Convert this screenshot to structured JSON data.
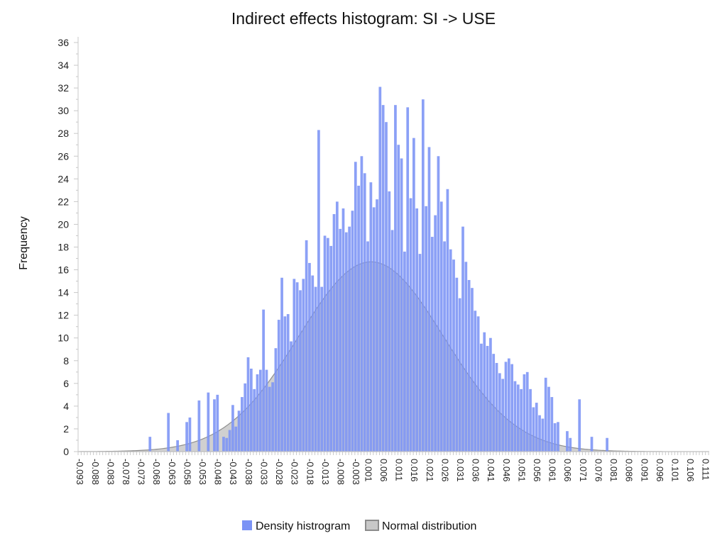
{
  "chart_data": {
    "type": "bar",
    "title": "Indirect effects histogram: SI -> USE",
    "ylabel": "Frequency",
    "xlabel": "",
    "ylim": [
      0,
      36
    ],
    "y_ticks": [
      0,
      2,
      4,
      6,
      8,
      10,
      12,
      14,
      16,
      18,
      20,
      22,
      24,
      26,
      28,
      30,
      32,
      34,
      36
    ],
    "x_range": [
      -0.0935,
      0.112
    ],
    "x_tick_labels": [
      "-0.093",
      "-0.088",
      "-0.083",
      "-0.078",
      "-0.073",
      "-0.068",
      "-0.063",
      "-0.058",
      "-0.053",
      "-0.048",
      "-0.043",
      "-0.038",
      "-0.033",
      "-0.028",
      "-0.023",
      "-0.018",
      "-0.013",
      "-0.008",
      "-0.003",
      "0.001",
      "0.006",
      "0.011",
      "0.016",
      "0.021",
      "0.026",
      "0.031",
      "0.036",
      "0.041",
      "0.046",
      "0.051",
      "0.056",
      "0.061",
      "0.066",
      "0.071",
      "0.076",
      "0.081",
      "0.086",
      "0.091",
      "0.096",
      "0.101",
      "0.106",
      "0.111"
    ],
    "bin_width": 0.001,
    "series": [
      {
        "name": "Density histrogram",
        "color": "#7b93f5",
        "bins": [
          [
            -0.07,
            1.3
          ],
          [
            -0.064,
            3.4
          ],
          [
            -0.061,
            1.0
          ],
          [
            -0.058,
            2.6
          ],
          [
            -0.057,
            3.0
          ],
          [
            -0.054,
            4.5
          ],
          [
            -0.051,
            5.2
          ],
          [
            -0.049,
            4.6
          ],
          [
            -0.048,
            5.0
          ],
          [
            -0.046,
            1.3
          ],
          [
            -0.045,
            1.2
          ],
          [
            -0.044,
            1.9
          ],
          [
            -0.043,
            4.1
          ],
          [
            -0.042,
            2.2
          ],
          [
            -0.041,
            3.6
          ],
          [
            -0.04,
            4.8
          ],
          [
            -0.039,
            6.0
          ],
          [
            -0.038,
            8.3
          ],
          [
            -0.037,
            7.3
          ],
          [
            -0.036,
            5.5
          ],
          [
            -0.035,
            6.8
          ],
          [
            -0.034,
            7.2
          ],
          [
            -0.033,
            12.5
          ],
          [
            -0.032,
            7.2
          ],
          [
            -0.031,
            5.7
          ],
          [
            -0.03,
            6.1
          ],
          [
            -0.029,
            9.1
          ],
          [
            -0.028,
            11.6
          ],
          [
            -0.027,
            15.3
          ],
          [
            -0.026,
            11.9
          ],
          [
            -0.025,
            12.1
          ],
          [
            -0.024,
            9.7
          ],
          [
            -0.023,
            15.2
          ],
          [
            -0.022,
            14.9
          ],
          [
            -0.021,
            14.2
          ],
          [
            -0.02,
            15.2
          ],
          [
            -0.019,
            18.6
          ],
          [
            -0.018,
            16.6
          ],
          [
            -0.017,
            15.5
          ],
          [
            -0.016,
            14.5
          ],
          [
            -0.015,
            28.3
          ],
          [
            -0.014,
            14.5
          ],
          [
            -0.013,
            19.0
          ],
          [
            -0.012,
            18.8
          ],
          [
            -0.011,
            18.1
          ],
          [
            -0.01,
            20.9
          ],
          [
            -0.009,
            22.0
          ],
          [
            -0.008,
            19.6
          ],
          [
            -0.007,
            21.4
          ],
          [
            -0.006,
            19.3
          ],
          [
            -0.005,
            19.8
          ],
          [
            -0.004,
            21.2
          ],
          [
            -0.003,
            25.5
          ],
          [
            -0.002,
            23.4
          ],
          [
            -0.001,
            26.0
          ],
          [
            0.0,
            24.5
          ],
          [
            0.001,
            18.5
          ],
          [
            0.002,
            23.7
          ],
          [
            0.003,
            21.5
          ],
          [
            0.004,
            22.2
          ],
          [
            0.005,
            32.1
          ],
          [
            0.006,
            30.5
          ],
          [
            0.007,
            29.0
          ],
          [
            0.008,
            22.9
          ],
          [
            0.009,
            19.5
          ],
          [
            0.01,
            30.5
          ],
          [
            0.011,
            27.0
          ],
          [
            0.012,
            25.8
          ],
          [
            0.013,
            17.6
          ],
          [
            0.014,
            30.3
          ],
          [
            0.015,
            22.3
          ],
          [
            0.016,
            27.6
          ],
          [
            0.017,
            21.4
          ],
          [
            0.018,
            17.4
          ],
          [
            0.019,
            31.0
          ],
          [
            0.02,
            21.6
          ],
          [
            0.021,
            26.8
          ],
          [
            0.022,
            18.9
          ],
          [
            0.023,
            20.8
          ],
          [
            0.024,
            26.0
          ],
          [
            0.025,
            22.0
          ],
          [
            0.026,
            18.5
          ],
          [
            0.027,
            23.1
          ],
          [
            0.028,
            17.8
          ],
          [
            0.029,
            16.9
          ],
          [
            0.03,
            15.3
          ],
          [
            0.031,
            13.5
          ],
          [
            0.032,
            19.8
          ],
          [
            0.033,
            16.7
          ],
          [
            0.034,
            15.1
          ],
          [
            0.035,
            14.4
          ],
          [
            0.036,
            12.4
          ],
          [
            0.037,
            11.9
          ],
          [
            0.038,
            9.5
          ],
          [
            0.039,
            10.5
          ],
          [
            0.04,
            9.3
          ],
          [
            0.041,
            10.0
          ],
          [
            0.042,
            8.6
          ],
          [
            0.043,
            7.8
          ],
          [
            0.044,
            6.9
          ],
          [
            0.045,
            6.4
          ],
          [
            0.046,
            7.9
          ],
          [
            0.047,
            8.2
          ],
          [
            0.048,
            7.7
          ],
          [
            0.049,
            6.2
          ],
          [
            0.05,
            5.9
          ],
          [
            0.051,
            5.5
          ],
          [
            0.052,
            6.8
          ],
          [
            0.053,
            7.0
          ],
          [
            0.054,
            5.5
          ],
          [
            0.055,
            3.9
          ],
          [
            0.056,
            4.3
          ],
          [
            0.057,
            3.2
          ],
          [
            0.058,
            2.9
          ],
          [
            0.059,
            6.5
          ],
          [
            0.06,
            5.7
          ],
          [
            0.061,
            4.8
          ],
          [
            0.062,
            2.5
          ],
          [
            0.063,
            2.6
          ],
          [
            0.066,
            1.8
          ],
          [
            0.067,
            1.2
          ],
          [
            0.07,
            4.6
          ],
          [
            0.074,
            1.3
          ],
          [
            0.079,
            1.2
          ]
        ]
      },
      {
        "name": "Normal distribution",
        "color": "#c8c8c8",
        "type": "area",
        "mean": 0.002,
        "sd": 0.0236,
        "peak": 16.7
      }
    ],
    "legend": {
      "position": "bottom-center"
    },
    "grid": false
  }
}
